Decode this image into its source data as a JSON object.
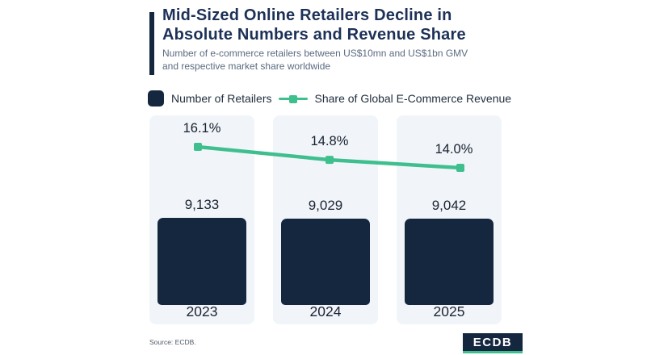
{
  "header": {
    "title_line1": "Mid-Sized Online Retailers Decline in",
    "title_line2": "Absolute Numbers and Revenue Share",
    "subtitle_line1": "Number of e-commerce retailers between US$10mn and US$1bn GMV",
    "subtitle_line2": "and respective market share worldwide"
  },
  "legend": {
    "retailers_label": "Number of Retailers",
    "revenue_label": "Share of Global E-Commerce Revenue"
  },
  "chart_data": {
    "type": "bar",
    "categories": [
      "2023",
      "2024",
      "2025"
    ],
    "series": [
      {
        "name": "Number of Retailers",
        "type": "bar",
        "values": [
          9133,
          9029,
          9042
        ],
        "labels": [
          "9,133",
          "9,029",
          "9,042"
        ],
        "color": "#14273F"
      },
      {
        "name": "Share of Global E-Commerce Revenue",
        "type": "line",
        "values": [
          16.1,
          14.8,
          14.0
        ],
        "labels": [
          "16.1%",
          "14.8%",
          "14.0%"
        ],
        "color": "#3FBF8E"
      }
    ],
    "title": "Mid-Sized Online Retailers Decline in Absolute Numbers and Revenue Share",
    "xlabel": "",
    "ylabel": "",
    "grid": false,
    "legend_position": "top"
  },
  "footer": {
    "source": "Source: ECDB.",
    "logo_text": "ECDB"
  },
  "colors": {
    "navy": "#14273F",
    "title": "#1D3158",
    "green": "#3FBF8E",
    "panel": "#F1F5F9",
    "subtitle": "#5B6B80",
    "text": "#1B2433",
    "source": "#4F5B66"
  }
}
